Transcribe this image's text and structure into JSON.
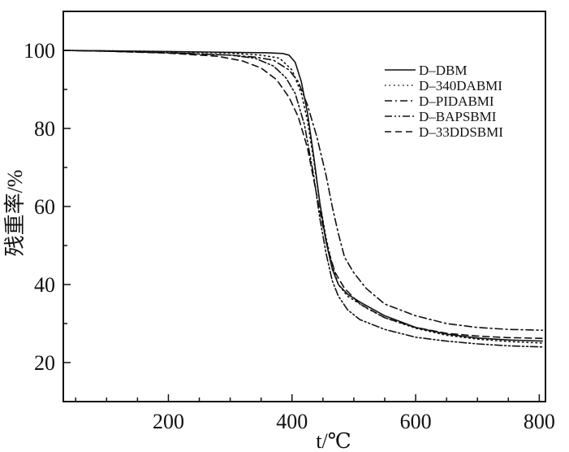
{
  "chart_data": {
    "type": "line",
    "title": "",
    "xlabel": "t/℃",
    "ylabel": "残重率/%",
    "xlim": [
      30,
      810
    ],
    "ylim": [
      10,
      110
    ],
    "x_ticks": [
      200,
      400,
      600,
      800
    ],
    "y_ticks": [
      20,
      40,
      60,
      80,
      100
    ],
    "x_minor_step": 50,
    "y_minor_step": 10,
    "grid": false,
    "legend": "top-right",
    "series": [
      {
        "name": "D–DBM",
        "dash": "solid",
        "points": [
          [
            30,
            100
          ],
          [
            100,
            99.9
          ],
          [
            200,
            99.7
          ],
          [
            300,
            99.5
          ],
          [
            360,
            99.4
          ],
          [
            385,
            99.2
          ],
          [
            395,
            98.8
          ],
          [
            405,
            97
          ],
          [
            415,
            92
          ],
          [
            425,
            84
          ],
          [
            435,
            73
          ],
          [
            445,
            61
          ],
          [
            455,
            51
          ],
          [
            465,
            44
          ],
          [
            475,
            40
          ],
          [
            490,
            37.5
          ],
          [
            510,
            35.5
          ],
          [
            550,
            32
          ],
          [
            600,
            29
          ],
          [
            650,
            27.3
          ],
          [
            700,
            26.3
          ],
          [
            750,
            25.8
          ],
          [
            805,
            25.5
          ]
        ]
      },
      {
        "name": "D–340DABMI",
        "dash": "dot",
        "points": [
          [
            30,
            100
          ],
          [
            100,
            99.9
          ],
          [
            200,
            99.7
          ],
          [
            300,
            99.3
          ],
          [
            350,
            98.8
          ],
          [
            380,
            98
          ],
          [
            400,
            95
          ],
          [
            415,
            89
          ],
          [
            425,
            82
          ],
          [
            435,
            72
          ],
          [
            445,
            61
          ],
          [
            455,
            52
          ],
          [
            465,
            45
          ],
          [
            475,
            40
          ],
          [
            490,
            37
          ],
          [
            520,
            34
          ],
          [
            550,
            31.5
          ],
          [
            600,
            28.8
          ],
          [
            650,
            27
          ],
          [
            700,
            26
          ],
          [
            750,
            25.4
          ],
          [
            805,
            25
          ]
        ]
      },
      {
        "name": "D–PIDABMI",
        "dash": "dashdot",
        "points": [
          [
            30,
            100
          ],
          [
            100,
            99.8
          ],
          [
            200,
            99.4
          ],
          [
            300,
            98.8
          ],
          [
            340,
            98.3
          ],
          [
            370,
            97.5
          ],
          [
            395,
            95
          ],
          [
            410,
            92
          ],
          [
            425,
            86
          ],
          [
            440,
            78
          ],
          [
            455,
            68
          ],
          [
            465,
            60
          ],
          [
            475,
            53
          ],
          [
            485,
            47
          ],
          [
            500,
            43
          ],
          [
            520,
            39
          ],
          [
            550,
            35
          ],
          [
            600,
            32
          ],
          [
            650,
            30
          ],
          [
            700,
            29
          ],
          [
            750,
            28.5
          ],
          [
            805,
            28.3
          ]
        ]
      },
      {
        "name": "D–BAPSBMI",
        "dash": "dashdotdot",
        "points": [
          [
            30,
            100
          ],
          [
            100,
            99.8
          ],
          [
            200,
            99.4
          ],
          [
            300,
            98.8
          ],
          [
            340,
            98
          ],
          [
            370,
            96
          ],
          [
            390,
            93
          ],
          [
            405,
            89
          ],
          [
            420,
            81
          ],
          [
            435,
            68
          ],
          [
            445,
            57
          ],
          [
            455,
            48
          ],
          [
            465,
            41
          ],
          [
            475,
            37
          ],
          [
            490,
            33.5
          ],
          [
            510,
            31
          ],
          [
            550,
            28.5
          ],
          [
            600,
            26.5
          ],
          [
            650,
            25.5
          ],
          [
            700,
            24.8
          ],
          [
            750,
            24.3
          ],
          [
            805,
            24
          ]
        ]
      },
      {
        "name": "D–33DDSBMI",
        "dash": "dash",
        "points": [
          [
            30,
            100
          ],
          [
            100,
            99.8
          ],
          [
            200,
            99.3
          ],
          [
            280,
            98.5
          ],
          [
            320,
            97.3
          ],
          [
            350,
            95.5
          ],
          [
            375,
            92.5
          ],
          [
            395,
            88
          ],
          [
            410,
            83
          ],
          [
            425,
            75
          ],
          [
            440,
            63
          ],
          [
            450,
            55
          ],
          [
            460,
            48
          ],
          [
            470,
            43
          ],
          [
            485,
            39
          ],
          [
            510,
            35
          ],
          [
            550,
            31.5
          ],
          [
            600,
            29
          ],
          [
            650,
            27.5
          ],
          [
            700,
            26.8
          ],
          [
            750,
            26.4
          ],
          [
            805,
            26.2
          ]
        ]
      }
    ]
  }
}
